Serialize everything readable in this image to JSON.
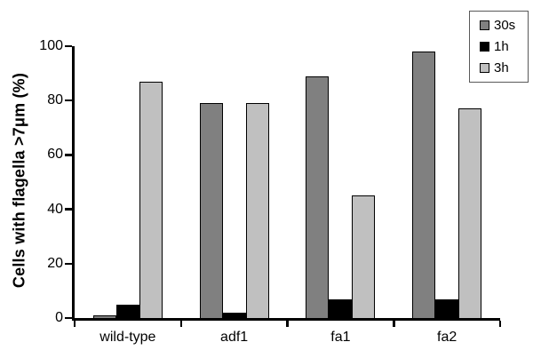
{
  "figure": {
    "background_color": "#ffffff",
    "axis_color": "#000000"
  },
  "chart_data": {
    "type": "bar",
    "title": "",
    "xlabel": "",
    "ylabel": "Cells with flagella >7μm (%)",
    "categories": [
      "wild-type",
      "adf1",
      "fa1",
      "fa2"
    ],
    "series": [
      {
        "name": "30s",
        "color": "#808080",
        "values": [
          1,
          79,
          89,
          98
        ]
      },
      {
        "name": "1h",
        "color": "#000000",
        "values": [
          5,
          2,
          7,
          7
        ]
      },
      {
        "name": "3h",
        "color": "#c0c0c0",
        "values": [
          87,
          79,
          45,
          77
        ]
      }
    ],
    "ylim": [
      0,
      100
    ],
    "yticks": [
      0,
      20,
      40,
      60,
      80,
      100
    ],
    "grid": false,
    "legend_position": "top-right",
    "bar_border_color": "#000000"
  }
}
